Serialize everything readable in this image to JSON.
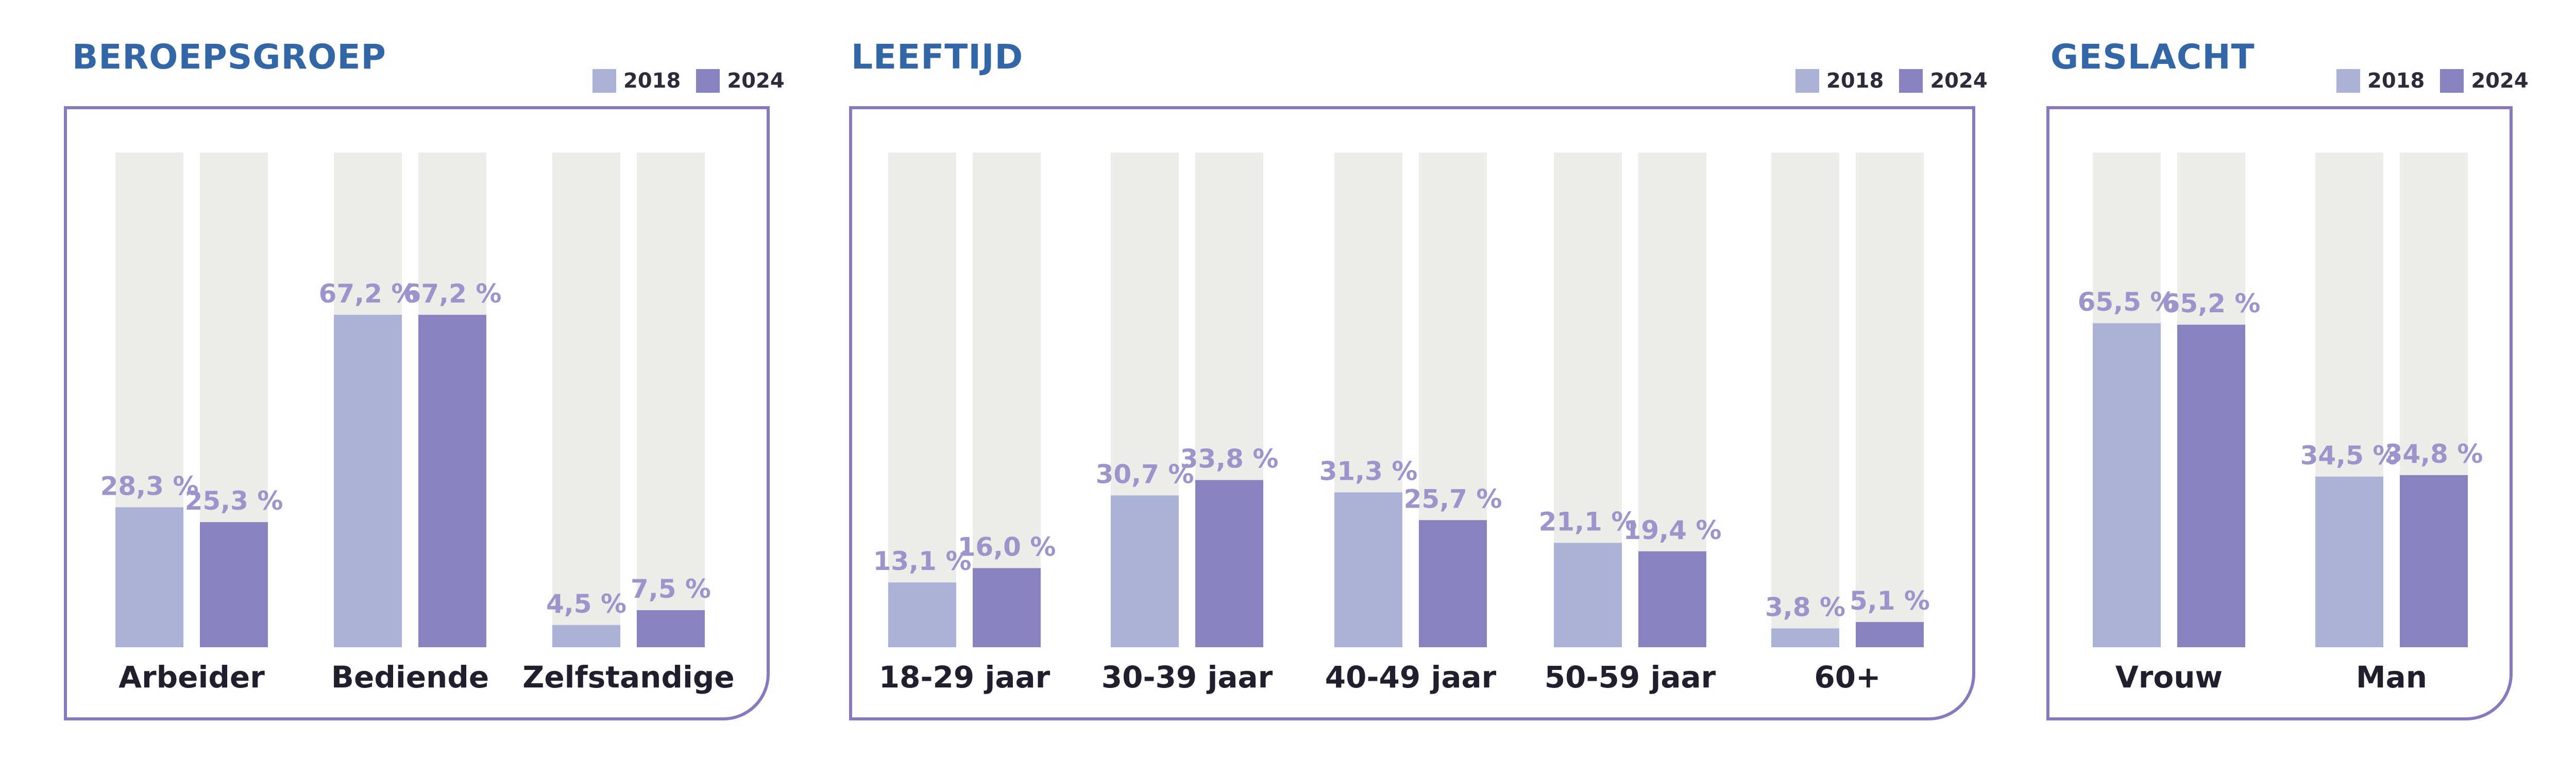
{
  "colors": {
    "title": "#3366A6",
    "bar_2018": "#ABB2D8",
    "bar_2024": "#8882BE",
    "bar_bg": "#ECECE8",
    "frame": "#8878BD",
    "value_label": "#9C95CB",
    "category_label": "#1f1f2e"
  },
  "legend": {
    "label_2018": "2018",
    "label_2024": "2024"
  },
  "chart_data": [
    {
      "type": "bar",
      "title": "BEROEPSGROEP",
      "ylim": [
        0,
        100
      ],
      "categories": [
        "Arbeider",
        "Bediende",
        "Zelfstandige"
      ],
      "series": [
        {
          "name": "2018",
          "values": [
            28.3,
            67.2,
            4.5
          ],
          "labels": [
            "28,3 %",
            "67,2 %",
            "4,5 %"
          ]
        },
        {
          "name": "2024",
          "values": [
            25.3,
            67.2,
            7.5
          ],
          "labels": [
            "25,3 %",
            "67,2 %",
            "7,5 %"
          ]
        }
      ]
    },
    {
      "type": "bar",
      "title": "LEEFTIJD",
      "ylim": [
        0,
        100
      ],
      "categories": [
        "18-29 jaar",
        "30-39 jaar",
        "40-49 jaar",
        "50-59 jaar",
        "60+"
      ],
      "series": [
        {
          "name": "2018",
          "values": [
            13.1,
            30.7,
            31.3,
            21.1,
            3.8
          ],
          "labels": [
            "13,1 %",
            "30,7 %",
            "31,3 %",
            "21,1 %",
            "3,8 %"
          ]
        },
        {
          "name": "2024",
          "values": [
            16.0,
            33.8,
            25.7,
            19.4,
            5.1
          ],
          "labels": [
            "16,0 %",
            "33,8 %",
            "25,7 %",
            "19,4 %",
            "5,1 %"
          ]
        }
      ]
    },
    {
      "type": "bar",
      "title": "GESLACHT",
      "ylim": [
        0,
        100
      ],
      "categories": [
        "Vrouw",
        "Man"
      ],
      "series": [
        {
          "name": "2018",
          "values": [
            65.5,
            34.5
          ],
          "labels": [
            "65,5 %",
            "34,5 %"
          ]
        },
        {
          "name": "2024",
          "values": [
            65.2,
            34.8
          ],
          "labels": [
            "65,2 %",
            "34,8 %"
          ]
        }
      ]
    }
  ]
}
